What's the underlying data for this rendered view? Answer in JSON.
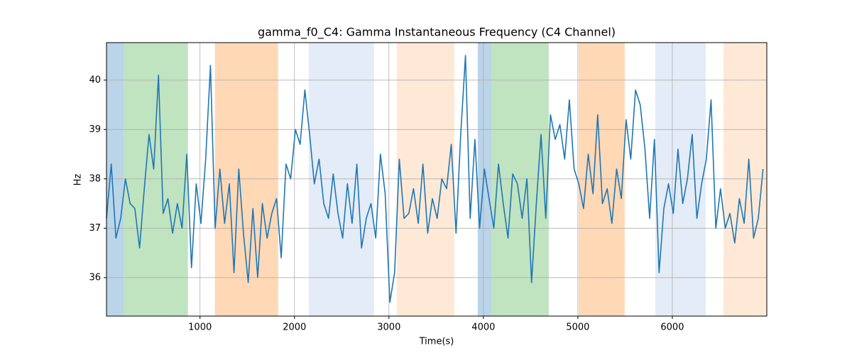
{
  "chart_data": {
    "type": "line",
    "title": "gamma_f0_C4: Gamma Instantaneous Frequency (C4 Channel)",
    "xlabel": "Time(s)",
    "ylabel": "Hz",
    "xlim": [
      10,
      7000
    ],
    "ylim": [
      35.22,
      40.76
    ],
    "xticks": [
      1000,
      2000,
      3000,
      4000,
      5000,
      6000
    ],
    "yticks": [
      36,
      37,
      38,
      39,
      40
    ],
    "grid": true,
    "spans": [
      {
        "x0": 10,
        "x1": 196,
        "color": "#bad4e8"
      },
      {
        "x0": 196,
        "x1": 872,
        "color": "#c0e3c0"
      },
      {
        "x0": 1158,
        "x1": 1827,
        "color": "#ffd8b6"
      },
      {
        "x0": 2150,
        "x1": 2842,
        "color": "#e4ecf7"
      },
      {
        "x0": 3083,
        "x1": 3692,
        "color": "#fee9d6"
      },
      {
        "x0": 3940,
        "x1": 4090,
        "color": "#bad4e8"
      },
      {
        "x0": 4090,
        "x1": 4692,
        "color": "#c0e3c0"
      },
      {
        "x0": 5008,
        "x1": 5496,
        "color": "#ffd8b6"
      },
      {
        "x0": 5820,
        "x1": 6353,
        "color": "#e4ecf7"
      },
      {
        "x0": 6541,
        "x1": 7000,
        "color": "#fee9d6"
      }
    ],
    "x": [
      10,
      60,
      110,
      160,
      210,
      260,
      310,
      360,
      410,
      460,
      510,
      560,
      610,
      660,
      710,
      760,
      810,
      860,
      910,
      960,
      1010,
      1060,
      1110,
      1160,
      1210,
      1260,
      1310,
      1360,
      1410,
      1460,
      1510,
      1560,
      1610,
      1660,
      1710,
      1760,
      1810,
      1860,
      1910,
      1960,
      2010,
      2060,
      2110,
      2160,
      2210,
      2260,
      2310,
      2360,
      2410,
      2460,
      2510,
      2560,
      2610,
      2660,
      2710,
      2760,
      2810,
      2860,
      2910,
      2960,
      3010,
      3060,
      3110,
      3160,
      3210,
      3260,
      3310,
      3360,
      3410,
      3460,
      3510,
      3560,
      3610,
      3660,
      3710,
      3760,
      3810,
      3860,
      3910,
      3960,
      4010,
      4060,
      4110,
      4160,
      4210,
      4260,
      4310,
      4360,
      4410,
      4460,
      4510,
      4560,
      4610,
      4660,
      4710,
      4760,
      4810,
      4860,
      4910,
      4960,
      5010,
      5060,
      5110,
      5160,
      5210,
      5260,
      5310,
      5360,
      5410,
      5460,
      5510,
      5560,
      5610,
      5660,
      5710,
      5760,
      5810,
      5860,
      5910,
      5960,
      6010,
      6060,
      6110,
      6160,
      6210,
      6260,
      6310,
      6360,
      6410,
      6460,
      6510,
      6560,
      6610,
      6660,
      6710,
      6760,
      6810,
      6860,
      6910,
      6960
    ],
    "series": [
      {
        "name": "gamma_f0_C4",
        "color": "#1f77b4",
        "values": [
          37.2,
          38.3,
          36.8,
          37.2,
          38.0,
          37.5,
          37.4,
          36.6,
          37.8,
          38.9,
          38.2,
          40.1,
          37.3,
          37.6,
          36.9,
          37.5,
          37.0,
          38.5,
          36.2,
          37.9,
          37.1,
          38.4,
          40.3,
          37.0,
          38.2,
          37.1,
          37.9,
          36.1,
          38.2,
          36.9,
          35.9,
          37.4,
          36.0,
          37.5,
          36.8,
          37.3,
          37.6,
          36.4,
          38.3,
          38.0,
          39.0,
          38.7,
          39.8,
          38.9,
          37.9,
          38.4,
          37.5,
          37.2,
          38.1,
          37.3,
          36.8,
          37.9,
          37.1,
          38.3,
          36.6,
          37.2,
          37.5,
          36.8,
          38.5,
          37.7,
          35.5,
          36.1,
          38.4,
          37.2,
          37.3,
          37.8,
          37.1,
          38.3,
          36.9,
          37.6,
          37.2,
          38.0,
          37.8,
          38.7,
          36.9,
          38.9,
          40.5,
          37.2,
          38.8,
          37.0,
          38.2,
          37.6,
          37.0,
          38.3,
          37.5,
          36.8,
          38.1,
          37.9,
          37.2,
          38.0,
          35.9,
          37.5,
          38.9,
          37.2,
          39.3,
          38.8,
          39.1,
          38.4,
          39.6,
          38.2,
          37.9,
          37.4,
          38.5,
          37.7,
          39.3,
          37.5,
          37.8,
          37.1,
          38.2,
          37.6,
          39.2,
          38.4,
          39.8,
          39.5,
          38.6,
          37.2,
          38.8,
          36.1,
          37.4,
          37.9,
          37.3,
          38.6,
          37.5,
          38.0,
          38.9,
          37.2,
          37.9,
          38.4,
          39.6,
          37.0,
          37.8,
          37.0,
          37.3,
          36.7,
          37.6,
          37.1,
          38.4,
          36.8,
          37.2,
          38.2
        ]
      }
    ]
  }
}
